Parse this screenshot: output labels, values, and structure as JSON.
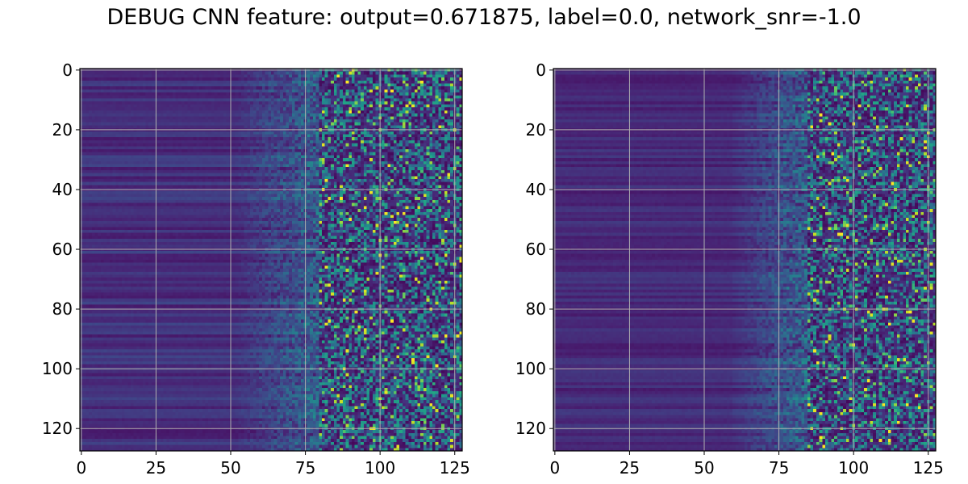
{
  "figure": {
    "title": "DEBUG CNN feature: output=0.671875, label=0.0, network_snr=-1.0"
  },
  "chart_data": [
    {
      "type": "heatmap",
      "title": "",
      "xlabel": "",
      "ylabel": "",
      "xlim": [
        0,
        127
      ],
      "ylim": [
        127,
        0
      ],
      "rows": 128,
      "cols": 128,
      "colormap": "viridis",
      "grid": true,
      "xticks": [
        0,
        25,
        50,
        75,
        100,
        125
      ],
      "yticks": [
        0,
        20,
        40,
        60,
        80,
        100,
        120
      ],
      "xtick_labels": [
        "0",
        "25",
        "50",
        "75",
        "100",
        "125"
      ],
      "ytick_labels": [
        "0",
        "20",
        "40",
        "60",
        "80",
        "100",
        "120"
      ],
      "description_values": {
        "low_region_cols": [
          0,
          50
        ],
        "transition_cols": [
          50,
          80
        ],
        "high_variance_cols": [
          80,
          127
        ]
      }
    },
    {
      "type": "heatmap",
      "title": "",
      "xlabel": "",
      "ylabel": "",
      "xlim": [
        0,
        127
      ],
      "ylim": [
        127,
        0
      ],
      "rows": 128,
      "cols": 128,
      "colormap": "viridis",
      "grid": true,
      "xticks": [
        0,
        25,
        50,
        75,
        100,
        125
      ],
      "yticks": [
        0,
        20,
        40,
        60,
        80,
        100,
        120
      ],
      "xtick_labels": [
        "0",
        "25",
        "50",
        "75",
        "100",
        "125"
      ],
      "ytick_labels": [
        "0",
        "20",
        "40",
        "60",
        "80",
        "100",
        "120"
      ],
      "description_values": {
        "low_region_cols": [
          0,
          60
        ],
        "transition_cols": [
          60,
          85
        ],
        "high_variance_cols": [
          85,
          127
        ]
      }
    }
  ],
  "colors": {
    "viridis_low": "#440154",
    "viridis_mid": "#21918c",
    "viridis_high": "#fde725",
    "grid": "#b0b0b0"
  }
}
